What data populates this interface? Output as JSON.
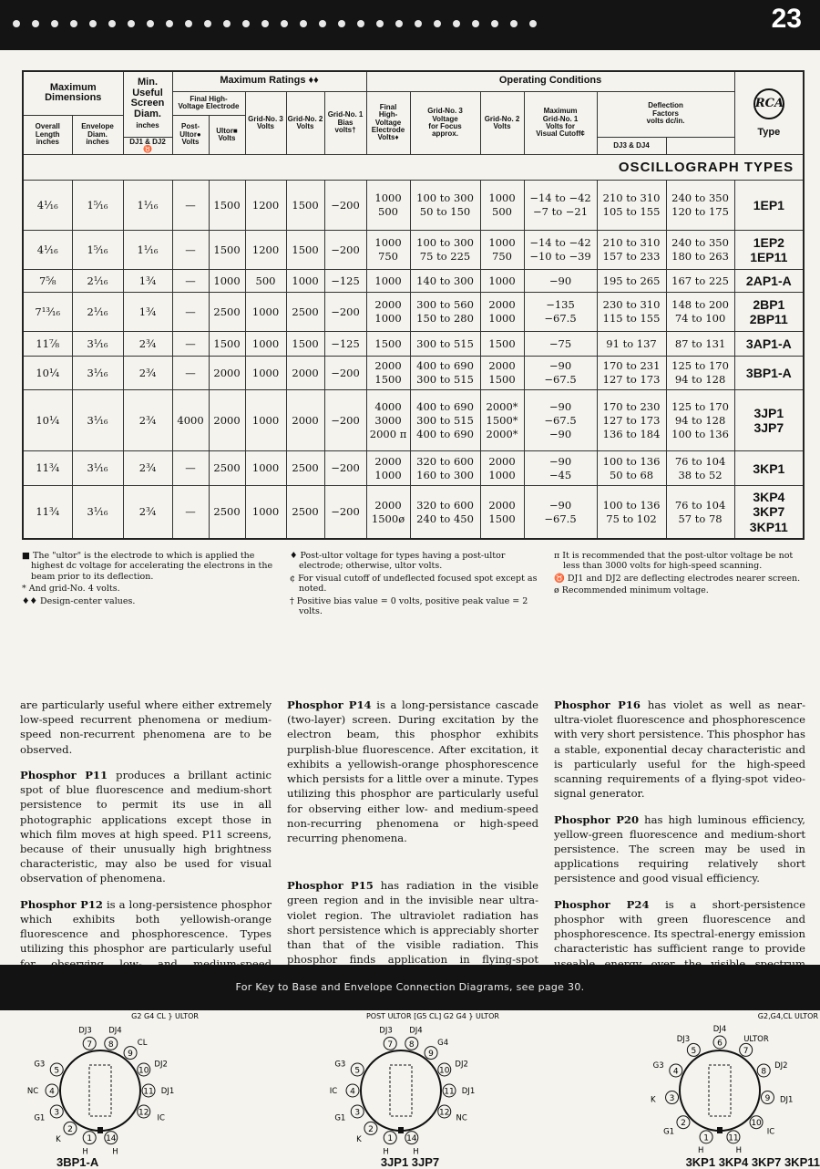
{
  "header": {
    "page_number": "23",
    "dot_count": 28
  },
  "table": {
    "groups": {
      "max_dims": "Maximum\nDimensions",
      "min_screen": "Min.\nUseful\nScreen\nDiam.",
      "min_screen_unit": "inches",
      "max_ratings": "Maximum Ratings ♦♦",
      "op_cond": "Operating Conditions",
      "final_hv": "Final High-\nVoltage Electrode",
      "deflection": "Deflection\nFactors\nvolts dc/in.",
      "type": "Type",
      "logo": "RCA"
    },
    "cols": {
      "overall": "Overall\nLength\ninches",
      "envelope": "Envelope\nDiam.\ninches",
      "post_ultor": "Post-\nUltor●\nVolts",
      "ultor": "Ultor■\nVolts",
      "g3": "Grid-No. 3\nVolts",
      "g2": "Grid-No. 2\nVolts",
      "g1": "Grid-No. 1\nBias\nvolts†",
      "op_final": "Final\nHigh-\nVoltage\nElectrode\nVolts♦",
      "op_g3": "Grid-No. 3\nVoltage\nfor Focus\napprox.",
      "op_g2": "Grid-No. 2\nVolts",
      "op_g1": "Maximum\nGrid-No. 1\nVolts for\nVisual Cutoff¢",
      "dj12": "DJ1 & DJ2 ♉",
      "dj34": "DJ3 & DJ4"
    },
    "section": "OSCILLOGRAPH TYPES",
    "rows": [
      [
        "4¹⁄₁₆",
        "1⁵⁄₁₆",
        "1¹⁄₁₆",
        "—",
        "1500",
        "1200",
        "1500",
        "−200",
        "1000\n500",
        "100 to 300\n50 to 150",
        "1000\n500",
        "−14 to −42\n−7 to −21",
        "210 to 310\n105 to 155",
        "240 to 350\n120 to 175",
        "1EP1"
      ],
      [
        "4¹⁄₁₆",
        "1⁵⁄₁₆",
        "1¹⁄₁₆",
        "—",
        "1500",
        "1200",
        "1500",
        "−200",
        "1000\n750",
        "100 to 300\n75 to 225",
        "1000\n750",
        "−14 to −42\n−10 to −39",
        "210 to 310\n157 to 233",
        "240 to 350\n180 to 263",
        "1EP2\n1EP11"
      ],
      [
        "7⁵⁄₈",
        "2¹⁄₁₆",
        "1³⁄₄",
        "—",
        "1000",
        "500",
        "1000",
        "−125",
        "1000",
        "140 to 300",
        "1000",
        "−90",
        "195 to 265",
        "167 to 225",
        "2AP1-A"
      ],
      [
        "7¹³⁄₁₆",
        "2¹⁄₁₆",
        "1³⁄₄",
        "—",
        "2500",
        "1000",
        "2500",
        "−200",
        "2000\n1000",
        "300 to 560\n150 to 280",
        "2000\n1000",
        "−135\n−67.5",
        "230 to 310\n115 to 155",
        "148 to 200\n74 to 100",
        "2BP1\n2BP11"
      ],
      [
        "11⁷⁄₈",
        "3¹⁄₁₆",
        "2³⁄₄",
        "—",
        "1500",
        "1000",
        "1500",
        "−125",
        "1500",
        "300 to 515",
        "1500",
        "−75",
        "91 to 137",
        "87 to 131",
        "3AP1-A"
      ],
      [
        "10¹⁄₄",
        "3¹⁄₁₆",
        "2³⁄₄",
        "—",
        "2000",
        "1000",
        "2000",
        "−200",
        "2000\n1500",
        "400 to 690\n300 to 515",
        "2000\n1500",
        "−90\n−67.5",
        "170 to 231\n127 to 173",
        "125 to 170\n94 to 128",
        "3BP1-A"
      ],
      [
        "10¹⁄₄",
        "3¹⁄₁₆",
        "2³⁄₄",
        "4000",
        "2000",
        "1000",
        "2000",
        "−200",
        "4000\n3000\n2000 π",
        "400 to 690\n300 to 515\n400 to 690",
        "2000*\n1500*\n2000*",
        "−90\n−67.5\n−90",
        "170 to 230\n127 to 173\n136 to 184",
        "125 to 170\n94 to 128\n100 to 136",
        "3JP1\n3JP7"
      ],
      [
        "11³⁄₄",
        "3¹⁄₁₆",
        "2³⁄₄",
        "—",
        "2500",
        "1000",
        "2500",
        "−200",
        "2000\n1000",
        "320 to 600\n160 to 300",
        "2000\n1000",
        "−90\n−45",
        "100 to 136\n50 to 68",
        "76 to 104\n38 to 52",
        "3KP1"
      ],
      [
        "11³⁄₄",
        "3¹⁄₁₆",
        "2³⁄₄",
        "—",
        "2500",
        "1000",
        "2500",
        "−200",
        "2000\n1500ø",
        "320 to 600\n240 to 450",
        "2000\n1500",
        "−90\n−67.5",
        "100 to 136\n75 to 102",
        "76 to 104\n57 to 78",
        "3KP4\n3KP7\n3KP11"
      ]
    ]
  },
  "footnotes": [
    [
      "■ The \"ultor\" is the electrode to which is applied the highest dc voltage for accelerating the electrons in the beam prior to its deflection.",
      "* And grid-No. 4 volts.",
      "♦♦ Design-center values."
    ],
    [
      "♦ Post-ultor voltage for types having a post-ultor electrode; otherwise, ultor volts.",
      "¢ For visual cutoff of undeflected focused spot except as noted.",
      "† Positive bias value = 0 volts, positive peak value = 2 volts."
    ],
    [
      "π It is recommended that the post-ultor voltage be not less than 3000 volts for high-speed scanning.",
      "♉ DJ1 and DJ2 are deflecting electrodes nearer screen.",
      "ø Recommended minimum voltage."
    ]
  ],
  "body": [
    [
      {
        "lead": "",
        "text": "are particularly useful where either extremely low-speed recurrent phenomena or medium-speed non-recurrent phenomena are to be observed."
      },
      {
        "lead": "Phosphor P11",
        "text": " produces a brillant actinic spot of blue fluorescence and medium-short persistence to permit its use in all photographic applications except those in which film moves at high speed. P11 screens, because of their unusually high brightness characteristic, may also be used for visual observation of phenomena."
      },
      {
        "lead": "Phosphor P12",
        "text": " is a long-persistence phosphor which exhibits both yellowish-orange fluorescence and phosphorescence. Types utilizing this phosphor are particularly useful for observing low- and medium-speed recurring phenomena."
      }
    ],
    [
      {
        "lead": "Phosphor P14",
        "text": " is a long-persistance cascade (two-layer) screen. During excitation by the electron beam, this phosphor exhibits purplish-blue fluorescence. After excitation, it exhibits a yellowish-orange phosphorescence which persists for a little over a minute. Types utilizing this phosphor are particularly useful for observing either low- and medium-speed non-recurring phenomena or high-speed recurring phenomena."
      },
      {
        "lead": "Phosphor P15",
        "text": " has radiation in the visible green region and in the invisible near ultra-violet region. The ultraviolet radiation has short persistence which is appreciably shorter than that of the visible radiation. This phosphor finds application in flying-spot cathode-ray tubes."
      }
    ],
    [
      {
        "lead": "Phosphor P16",
        "text": " has violet as well as near-ultra-violet fluorescence and phosphorescence with very short persistence. This phosphor has a stable, exponential decay characteristic and is particularly useful for the high-speed scanning requirements of a flying-spot video-signal generator."
      },
      {
        "lead": "Phosphor P20",
        "text": " has high luminous efficiency, yellow-green fluorescence and medium-short persistence. The screen may be used in applications requiring relatively short persistence and good visual efficiency."
      },
      {
        "lead": "Phosphor P24",
        "text": " is a short-persistence phosphor with green fluorescence and phosphorescence. Its spectral-energy emission characteristic has sufficient range to provide useable energy over the visible spectrum required for generating color signals from color transparencies."
      }
    ]
  ],
  "band_text": "For Key to Base and Envelope Connection Diagrams, see page 30.",
  "diagrams": [
    {
      "caption": "3BP1-A",
      "positions": 14,
      "pins": [
        [
          "1",
          "H"
        ],
        [
          "2",
          "K"
        ],
        [
          "3",
          "G1"
        ],
        [
          "4",
          "NC"
        ],
        [
          "5",
          "G3"
        ],
        [
          "7",
          "DJ3"
        ],
        [
          "8",
          "DJ4"
        ],
        [
          "9",
          "CL"
        ],
        [
          "10",
          "DJ2"
        ],
        [
          "11",
          "DJ1"
        ],
        [
          "12",
          "IC"
        ],
        [
          "14",
          "H"
        ]
      ],
      "ultor_note": "G2 G4 CL } ULTOR"
    },
    {
      "caption": "3JP1 3JP7",
      "positions": 14,
      "pins": [
        [
          "1",
          "H"
        ],
        [
          "2",
          "K"
        ],
        [
          "3",
          "G1"
        ],
        [
          "4",
          "IC"
        ],
        [
          "5",
          "G3"
        ],
        [
          "7",
          "DJ3"
        ],
        [
          "8",
          "DJ4"
        ],
        [
          "9",
          "G4"
        ],
        [
          "10",
          "DJ2"
        ],
        [
          "11",
          "DJ1"
        ],
        [
          "12",
          "NC"
        ],
        [
          "14",
          "H"
        ]
      ],
      "ultor_note": "POST ULTOR [G5 CL]  G2 G4 } ULTOR"
    },
    {
      "caption": "3KP1 3KP4 3KP7 3KP11",
      "positions": 11,
      "pins": [
        [
          "1",
          "H"
        ],
        [
          "2",
          "G1"
        ],
        [
          "3",
          "K"
        ],
        [
          "4",
          "G3"
        ],
        [
          "5",
          "DJ3"
        ],
        [
          "6",
          "DJ4"
        ],
        [
          "7",
          "ULTOR"
        ],
        [
          "8",
          "DJ2"
        ],
        [
          "9",
          "DJ1"
        ],
        [
          "10",
          "IC"
        ],
        [
          "11",
          "H"
        ]
      ],
      "ultor_note": "G2,G4,CL ULTOR"
    }
  ]
}
